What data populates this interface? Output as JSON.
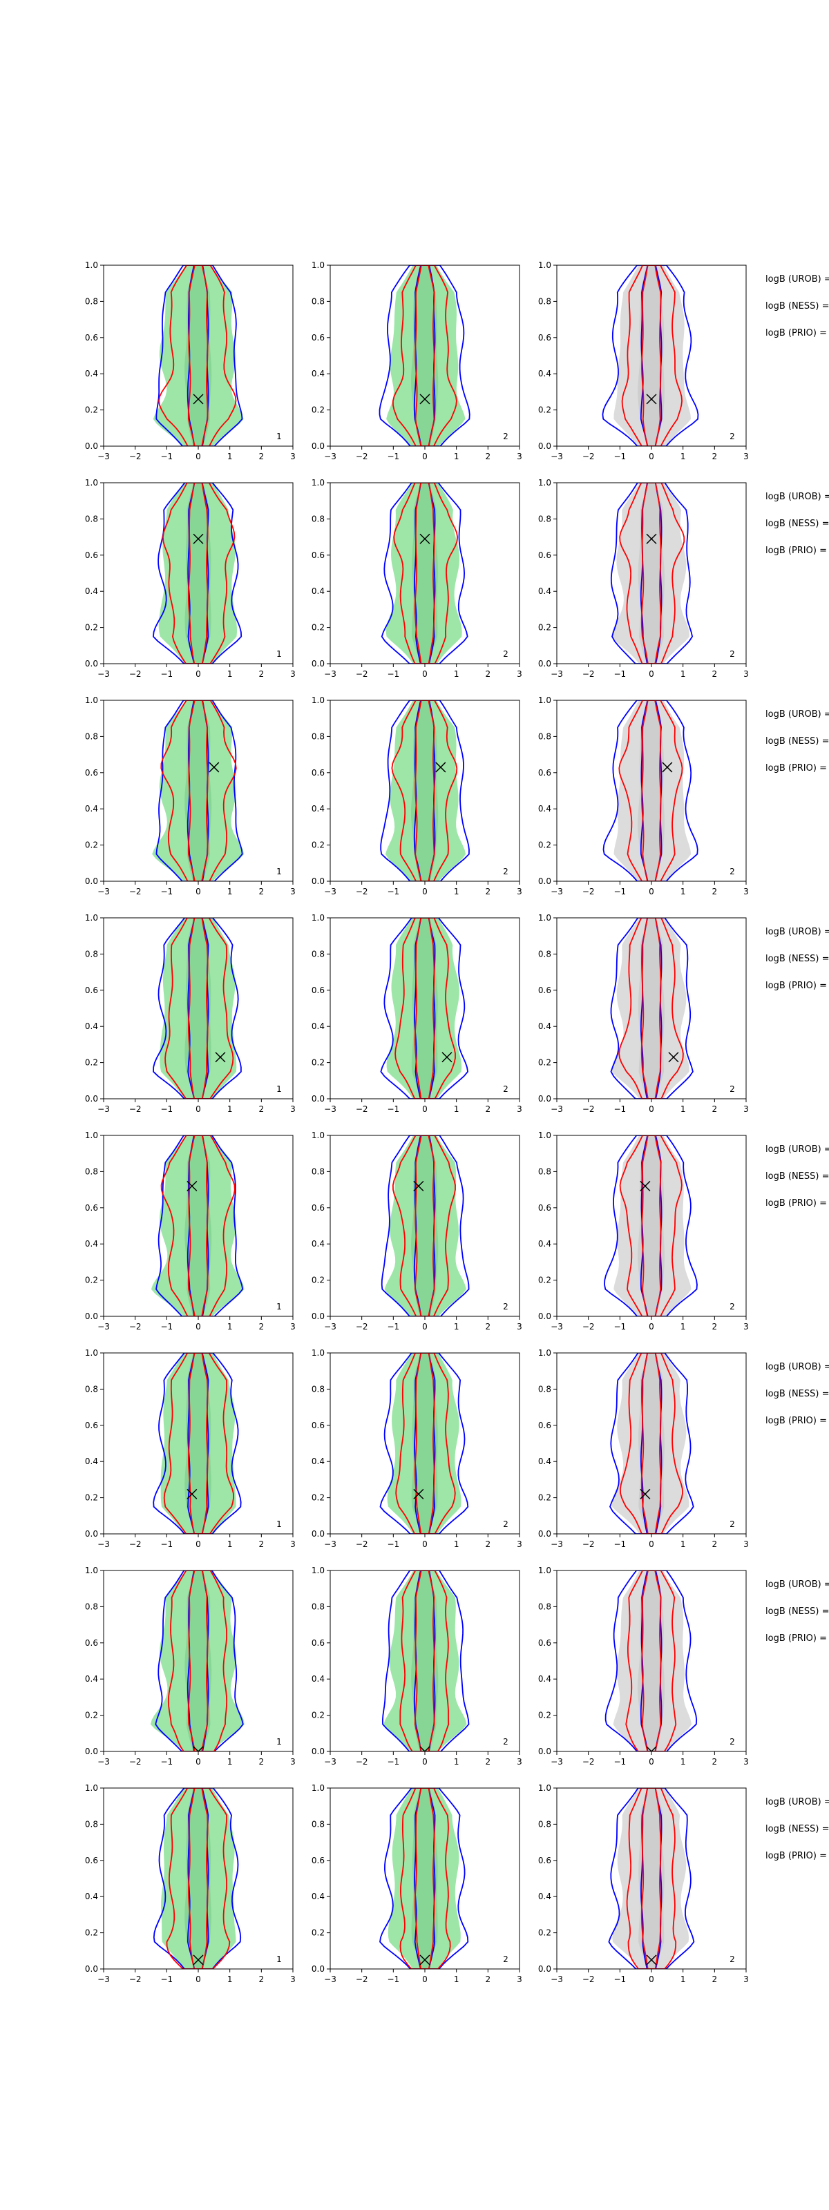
{
  "figure": {
    "rows": 8,
    "cols": 3,
    "colors": {
      "fill_green": "#9de6a8",
      "fill_gray": "#dcdcdc",
      "line_blue": "#0000ff",
      "line_red": "#ff0000",
      "marker": "#000000"
    }
  },
  "chart_data": {
    "type": "contour",
    "xlim": [
      -3,
      3
    ],
    "ylim": [
      0,
      1
    ],
    "xticks": [
      "−3",
      "−2",
      "−1",
      "0",
      "1",
      "2",
      "3"
    ],
    "yticks": [
      "0.0",
      "0.2",
      "0.4",
      "0.6",
      "0.8",
      "1.0"
    ],
    "grid": false,
    "panel_labels": [
      "1",
      "2",
      "2"
    ],
    "row_annotations": [
      "logB (UROB) =",
      "logB (NESS) =",
      "logB (PRIO) ="
    ],
    "markers": [
      {
        "row": 1,
        "x": 0.0,
        "y": 0.26
      },
      {
        "row": 2,
        "x": 0.0,
        "y": 0.69
      },
      {
        "row": 3,
        "x": 0.5,
        "y": 0.63
      },
      {
        "row": 4,
        "x": 0.7,
        "y": 0.23
      },
      {
        "row": 5,
        "x": -0.2,
        "y": 0.72
      },
      {
        "row": 6,
        "x": -0.2,
        "y": 0.22
      },
      {
        "row": 7,
        "x": 0.0,
        "y": 0.0
      },
      {
        "row": 8,
        "x": 0.0,
        "y": 0.05
      }
    ]
  }
}
